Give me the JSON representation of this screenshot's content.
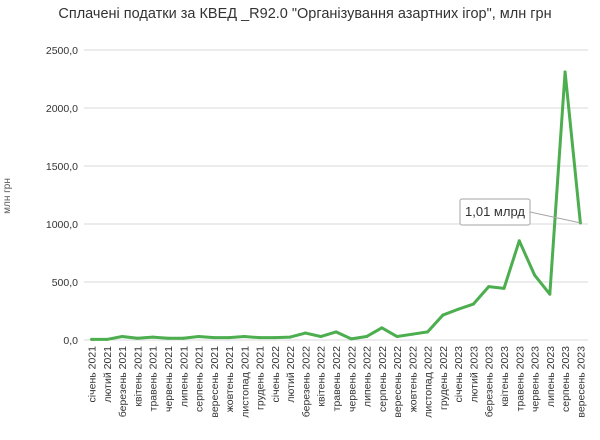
{
  "chart_data": {
    "type": "line",
    "title": "Сплачені податки за КВЕД _R92.0 \"Організування азартних ігор\", млн грн",
    "xlabel": "",
    "ylabel": "млн грн",
    "ylim": [
      0,
      2500
    ],
    "yticks": [
      "0,0",
      "500,0",
      "1000,0",
      "1500,0",
      "2000,0",
      "2500,0"
    ],
    "grid": true,
    "legend": "none",
    "line_color": "#4cae4f",
    "categories": [
      "січень 2021",
      "лютий 2021",
      "березень 2021",
      "квітень 2021",
      "травень 2021",
      "червень 2021",
      "липень 2021",
      "серпень 2021",
      "вересень 2021",
      "жовтень 2021",
      "листопад 2021",
      "грудень 2021",
      "січень 2022",
      "лютий 2022",
      "березень 2022",
      "квітень 2022",
      "травень 2022",
      "червень 2022",
      "липень 2022",
      "серпень 2022",
      "вересень 2022",
      "жовтень 2022",
      "листопад 2022",
      "грудень 2022",
      "січень 2023",
      "лютий 2023",
      "березень 2023",
      "квітень 2023",
      "травень 2023",
      "червень 2023",
      "липень 2023",
      "серпень 2023",
      "вересень 2023"
    ],
    "values": [
      5,
      5,
      30,
      15,
      25,
      15,
      15,
      30,
      20,
      20,
      30,
      20,
      20,
      25,
      60,
      30,
      70,
      10,
      30,
      105,
      30,
      50,
      70,
      215,
      265,
      310,
      460,
      445,
      855,
      560,
      395,
      2310,
      1010
    ],
    "annotation": {
      "text": "1,01 млрд",
      "index": 32
    }
  }
}
